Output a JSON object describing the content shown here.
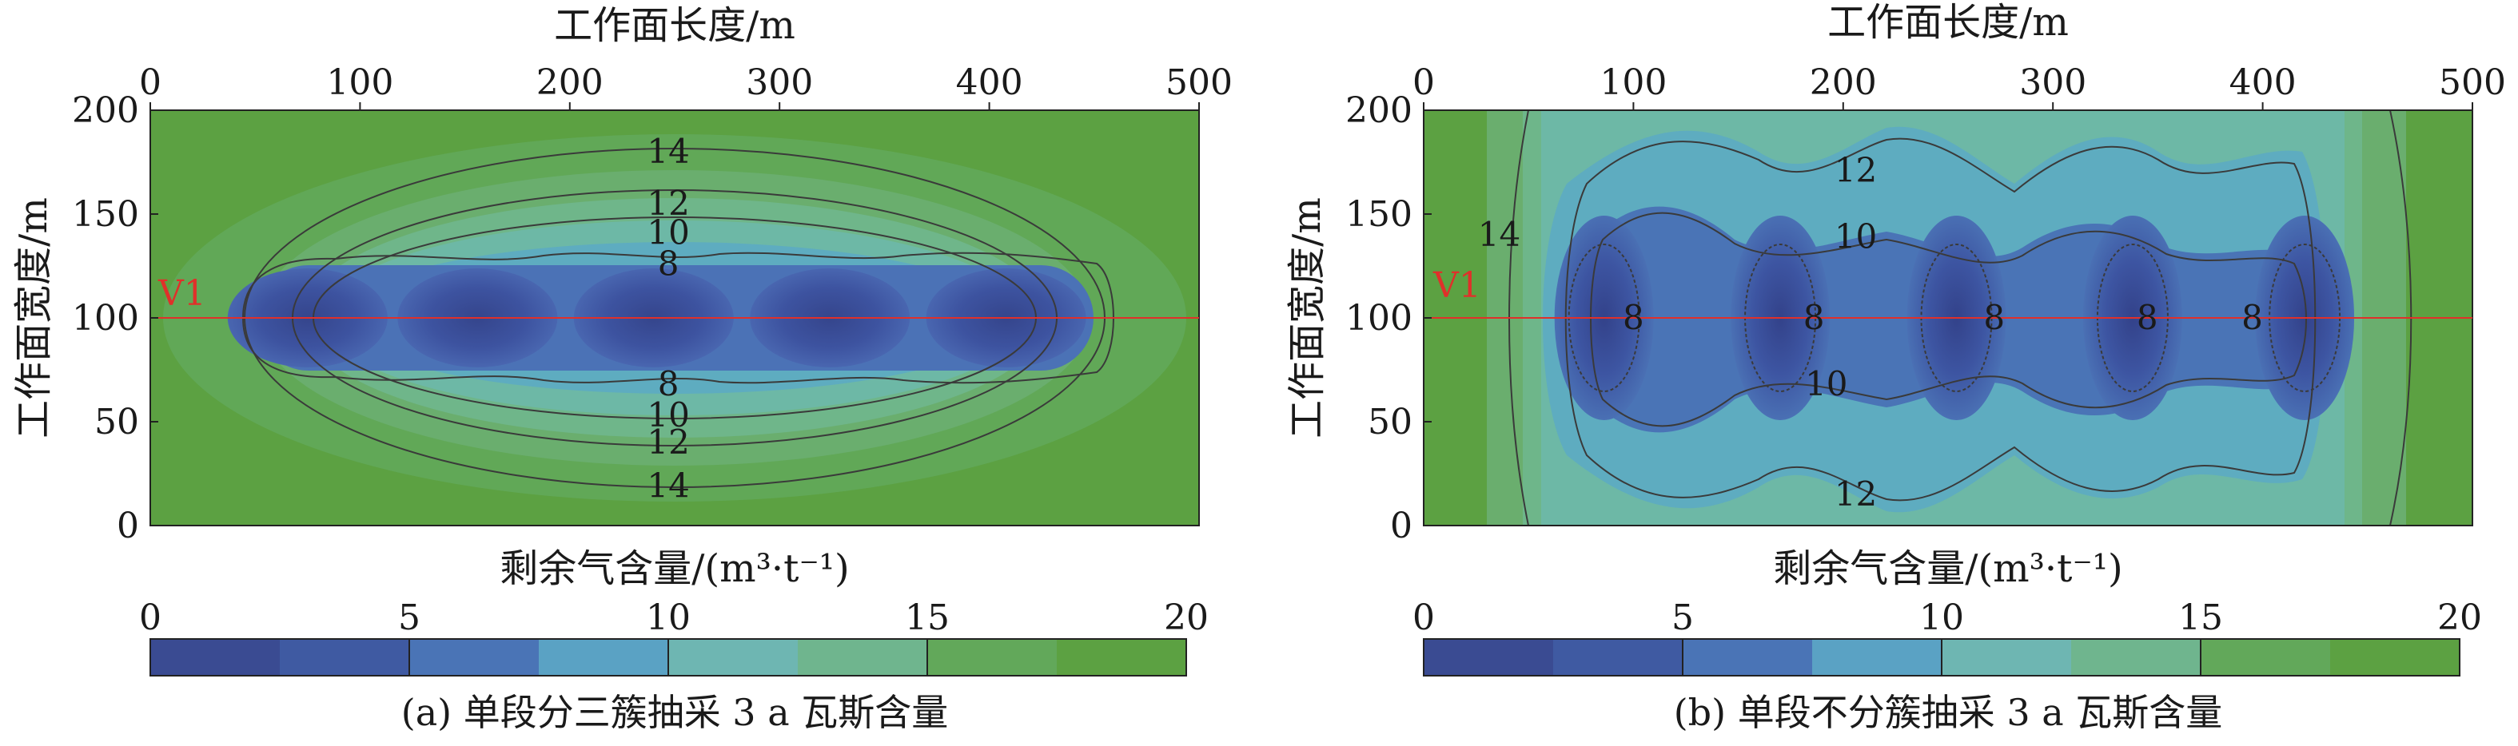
{
  "chart_data": [
    {
      "type": "heatmap",
      "panel": "a",
      "title": "",
      "xlabel": "工作面长度/m",
      "ylabel": "工作面宽度/m",
      "xlim": [
        0,
        500
      ],
      "ylim": [
        0,
        200
      ],
      "xticks": [
        "0",
        "100",
        "200",
        "300",
        "400",
        "500"
      ],
      "yticks": [
        "0",
        "50",
        "100",
        "150",
        "200"
      ],
      "colorbar_label": "剩余气含量/(m³·t⁻¹)",
      "colorbar_range": [
        0,
        20
      ],
      "colorbar_ticks": [
        "0",
        "5",
        "10",
        "15",
        "20"
      ],
      "caption": "(a) 单段分三簇抽采 3 a 瓦斯含量",
      "reference_line": {
        "label": "V1",
        "y": 100,
        "color": "#e0302a"
      },
      "borehole_centers_x": [
        75,
        156,
        240,
        324,
        408
      ],
      "contour_labels": [
        {
          "text": "14",
          "x": 247,
          "y": 180
        },
        {
          "text": "12",
          "x": 247,
          "y": 155
        },
        {
          "text": "10",
          "x": 247,
          "y": 141
        },
        {
          "text": "8",
          "x": 247,
          "y": 126
        },
        {
          "text": "8",
          "x": 247,
          "y": 68
        },
        {
          "text": "10",
          "x": 247,
          "y": 53
        },
        {
          "text": "12",
          "x": 247,
          "y": 40
        },
        {
          "text": "14",
          "x": 247,
          "y": 19
        }
      ]
    },
    {
      "type": "heatmap",
      "panel": "b",
      "title": "",
      "xlabel": "工作面长度/m",
      "ylabel": "工作面宽度/m",
      "xlim": [
        0,
        500
      ],
      "ylim": [
        0,
        200
      ],
      "xticks": [
        "0",
        "100",
        "200",
        "300",
        "400",
        "500"
      ],
      "yticks": [
        "0",
        "50",
        "100",
        "150",
        "200"
      ],
      "colorbar_label": "剩余气含量/(m³·t⁻¹)",
      "colorbar_range": [
        0,
        20
      ],
      "colorbar_ticks": [
        "0",
        "5",
        "10",
        "15",
        "20"
      ],
      "caption": "(b) 单段不分簇抽采 3 a 瓦斯含量",
      "reference_line": {
        "label": "V1",
        "y": 100,
        "color": "#e0302a"
      },
      "borehole_centers_x": [
        86,
        170,
        254,
        338,
        420
      ],
      "contour_labels": [
        {
          "text": "14",
          "x": 36,
          "y": 140
        },
        {
          "text": "12",
          "x": 206,
          "y": 171
        },
        {
          "text": "10",
          "x": 206,
          "y": 139
        },
        {
          "text": "8",
          "x": 100,
          "y": 100
        },
        {
          "text": "8",
          "x": 186,
          "y": 100
        },
        {
          "text": "8",
          "x": 272,
          "y": 100
        },
        {
          "text": "8",
          "x": 345,
          "y": 100
        },
        {
          "text": "8",
          "x": 395,
          "y": 100
        },
        {
          "text": "10",
          "x": 192,
          "y": 68
        },
        {
          "text": "12",
          "x": 206,
          "y": 15
        }
      ]
    }
  ],
  "colors": {
    "scale": [
      "#3a4b92",
      "#3f5aa2",
      "#4a74b6",
      "#5aa2c4",
      "#6eb6b2",
      "#6fb58e",
      "#62a85a",
      "#5ca142"
    ],
    "reference_line": "#e0302a",
    "contour": "#3a3a3a"
  }
}
